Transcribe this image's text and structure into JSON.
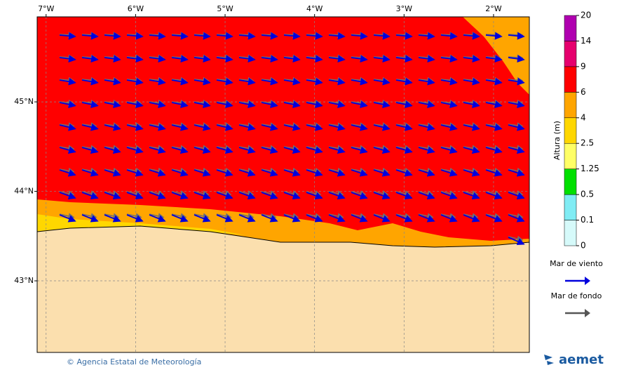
{
  "map": {
    "xlim": [
      -7.1,
      -1.6
    ],
    "ylim": [
      42.2,
      45.95
    ],
    "xticks": [
      {
        "value": -7,
        "label": "7°W"
      },
      {
        "value": -6,
        "label": "6°W"
      },
      {
        "value": -5,
        "label": "5°W"
      },
      {
        "value": -4,
        "label": "4°W"
      },
      {
        "value": -3,
        "label": "3°W"
      },
      {
        "value": -2,
        "label": "2°W"
      }
    ],
    "yticks": [
      {
        "value": 45,
        "label": "45°N"
      },
      {
        "value": 44,
        "label": "44°N"
      },
      {
        "value": 43,
        "label": "43°N"
      }
    ]
  },
  "colorbar": {
    "title": "Altura (m)",
    "ticks": [
      0,
      0.1,
      0.5,
      1.25,
      2.5,
      4,
      6,
      9,
      14,
      20
    ],
    "colors": [
      "#d6fafa",
      "#80ecf4",
      "#00e000",
      "#ffff66",
      "#ffd700",
      "#ffa500",
      "#ff0000",
      "#e6006e",
      "#b000b0"
    ]
  },
  "legend": [
    {
      "label": "Mar de viento",
      "color": "#0000dd"
    },
    {
      "label": "Mar de fondo",
      "color": "#555555"
    }
  ],
  "footer": {
    "credit": "© Agencia Estatal de Meteorología",
    "logo": "aemet"
  }
}
